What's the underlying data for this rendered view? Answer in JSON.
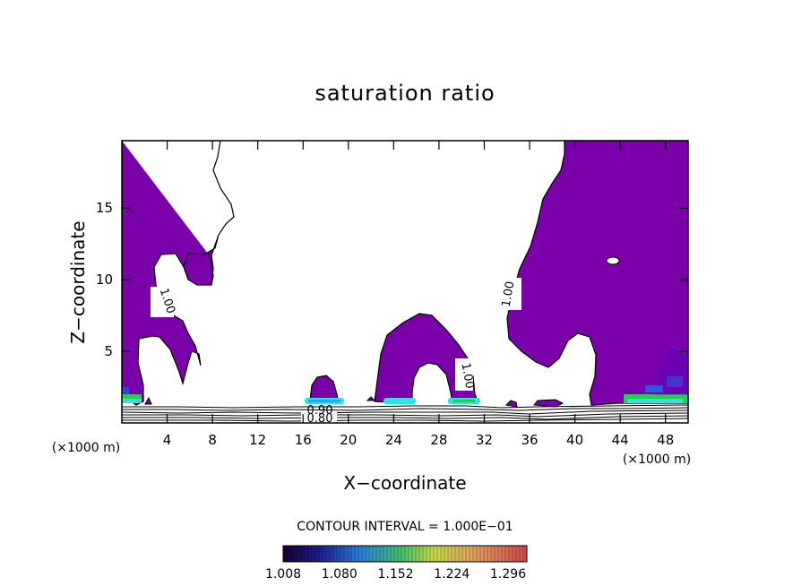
{
  "chart_data": {
    "type": "contour",
    "title": "saturation ratio",
    "xlabel": "X−coordinate",
    "ylabel": "Z−coordinate",
    "x_unit": "(×1000 m)",
    "x_unit_right": "(×1000 m)",
    "xlim": [
      0,
      50
    ],
    "ylim": [
      0,
      19.7
    ],
    "x_ticks": [
      4,
      8,
      12,
      16,
      20,
      24,
      28,
      32,
      36,
      40,
      44,
      48
    ],
    "x_tick_labels": [
      "4",
      "8",
      "12",
      "16",
      "20",
      "24",
      "28",
      "32",
      "36",
      "40",
      "44",
      "48"
    ],
    "y_ticks": [
      5,
      10,
      15
    ],
    "y_tick_labels": [
      "5",
      "10",
      "15"
    ],
    "contour_labels": [
      {
        "text": "1.00",
        "x": 3.8,
        "y": 8.6,
        "angle": 72
      },
      {
        "text": "1.00",
        "x": 34.3,
        "y": 8.8,
        "angle": -80
      },
      {
        "text": "1.00",
        "x": 30.5,
        "y": 3.2,
        "angle": 80
      },
      {
        "text": "0.80",
        "x": 17.3,
        "y": 0.6,
        "angle": 0
      },
      {
        "text": "0.90",
        "x": 17.3,
        "y": 1.0,
        "angle": 0
      }
    ],
    "contour_interval_label": "CONTOUR INTERVAL = 1.000E−01",
    "colorbar": {
      "tick_labels": [
        "1.008",
        "1.080",
        "1.152",
        "1.224",
        "1.296"
      ],
      "min": 1.008,
      "max": 1.32
    },
    "colors": {
      "supersaturated_fill": "#7a00aa",
      "cyan_band": "#33e0e0",
      "green_band": "#22cc55",
      "blue_band": "#2233cc"
    }
  }
}
